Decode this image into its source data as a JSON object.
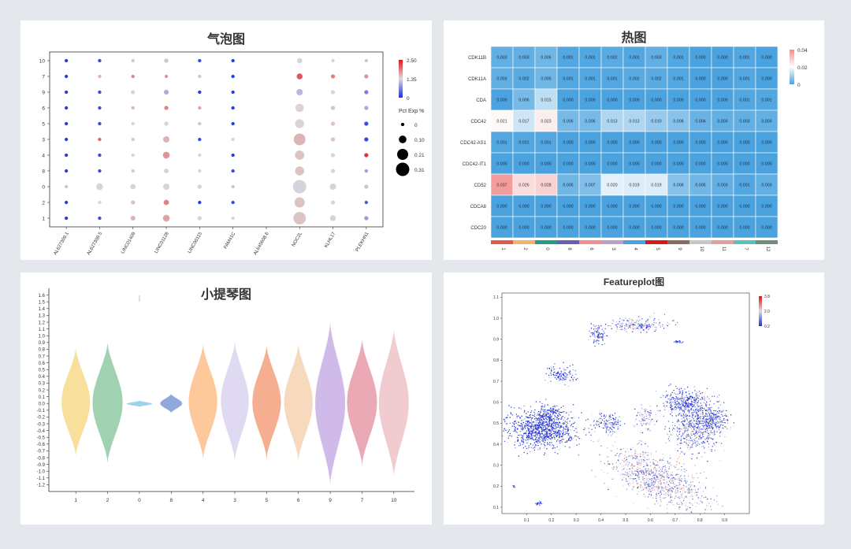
{
  "colors": {
    "low": "#1f2fd6",
    "mid": "#dcdcdc",
    "high": "#e0151b",
    "heat_low": "#4aa3df",
    "heat_high": "#f28c8c",
    "violin_gray": "#bdbdbd"
  },
  "chart_data": [
    {
      "type": "scatter",
      "subtype": "dotplot",
      "title": "气泡图",
      "xcategories": [
        "AL627309.1",
        "AL627309.5",
        "LINC01409",
        "LINC01128",
        "LINC00115",
        "FAM41C",
        "AL645608.6",
        "NOC2L",
        "KLHL17",
        "PLEKHN1"
      ],
      "ycategories": [
        "10",
        "7",
        "9",
        "6",
        "5",
        "3",
        "4",
        "8",
        "0",
        "2",
        "1"
      ],
      "color_legend": {
        "ticks": [
          "2.50",
          "1.35",
          "0"
        ],
        "range": [
          0,
          2.5
        ]
      },
      "size_legend": {
        "title": "Pct Exp %",
        "values": [
          "0",
          "0.10",
          "0.21",
          "0.31"
        ],
        "numeric": [
          0,
          0.1,
          0.21,
          0.31
        ]
      },
      "expression": [
        [
          0.1,
          0.2,
          1.4,
          1.1,
          0.2,
          0.1,
          null,
          1.2,
          1.3,
          1.1
        ],
        [
          0.1,
          1.5,
          1.8,
          1.7,
          1.4,
          0.1,
          null,
          2.1,
          1.8,
          1.7
        ],
        [
          0.1,
          0.2,
          1.3,
          0.9,
          0.1,
          0.1,
          null,
          1.0,
          1.3,
          0.6
        ],
        [
          0.1,
          0.2,
          1.5,
          1.8,
          1.6,
          0.1,
          null,
          1.3,
          1.1,
          0.9
        ],
        [
          0.1,
          0.2,
          1.2,
          1.3,
          1.1,
          0.1,
          null,
          1.3,
          1.4,
          0.2
        ],
        [
          0.1,
          2.0,
          1.4,
          1.5,
          0.2,
          1.3,
          null,
          1.5,
          1.4,
          0.2
        ],
        [
          0.1,
          0.2,
          1.3,
          1.7,
          1.2,
          0.1,
          null,
          1.4,
          1.3,
          2.3
        ],
        [
          0.1,
          0.2,
          1.4,
          1.2,
          1.2,
          0.2,
          null,
          1.4,
          1.3,
          0.8
        ],
        [
          1.1,
          1.2,
          1.3,
          1.2,
          1.2,
          1.1,
          null,
          1.2,
          1.2,
          1.1
        ],
        [
          0.1,
          1.3,
          1.4,
          1.8,
          0.1,
          0.2,
          null,
          1.4,
          1.3,
          0.3
        ],
        [
          0.1,
          0.2,
          1.5,
          1.6,
          1.2,
          1.2,
          null,
          1.4,
          1.2,
          0.8
        ]
      ],
      "pct": [
        [
          0.02,
          0.02,
          0.02,
          0.03,
          0.02,
          0.02,
          null,
          0.05,
          0.02,
          0.02
        ],
        [
          0.02,
          0.02,
          0.02,
          0.02,
          0.02,
          0.02,
          null,
          0.06,
          0.03,
          0.03
        ],
        [
          0.02,
          0.02,
          0.03,
          0.04,
          0.02,
          0.02,
          null,
          0.07,
          0.03,
          0.03
        ],
        [
          0.02,
          0.02,
          0.02,
          0.03,
          0.02,
          0.02,
          null,
          0.12,
          0.03,
          0.03
        ],
        [
          0.02,
          0.02,
          0.02,
          0.03,
          0.02,
          0.02,
          null,
          0.14,
          0.03,
          0.03
        ],
        [
          0.02,
          0.02,
          0.02,
          0.07,
          0.02,
          0.02,
          null,
          0.24,
          0.03,
          0.03
        ],
        [
          0.02,
          0.02,
          0.02,
          0.08,
          0.02,
          0.02,
          null,
          0.15,
          0.03,
          0.03
        ],
        [
          0.02,
          0.02,
          0.02,
          0.04,
          0.02,
          0.02,
          null,
          0.14,
          0.03,
          0.02
        ],
        [
          0.02,
          0.08,
          0.05,
          0.07,
          0.03,
          0.02,
          null,
          0.31,
          0.07,
          0.03
        ],
        [
          0.02,
          0.02,
          0.03,
          0.05,
          0.02,
          0.02,
          null,
          0.18,
          0.03,
          0.02
        ],
        [
          0.02,
          0.02,
          0.04,
          0.08,
          0.03,
          0.02,
          null,
          0.27,
          0.06,
          0.03
        ]
      ]
    },
    {
      "type": "heatmap",
      "title": "热图",
      "rows": [
        "CDK11B",
        "CDK11A",
        "CDA",
        "CDC42",
        "CDC42-AS1",
        "CDC42-IT1",
        "CD52",
        "CDCA8",
        "CDC20"
      ],
      "cols": [
        "1",
        "2",
        "0",
        "8",
        "6",
        "3",
        "4",
        "5",
        "9",
        "10",
        "11",
        "7",
        "12"
      ],
      "col_colors": [
        "#e05a4f",
        "#f3b16e",
        "#1f9e89",
        "#6b5fb5",
        "#f28e8e",
        "#b7a3c8",
        "#4aa3df",
        "#d7191c",
        "#8c6d5d",
        "#c7c7c7",
        "#e49e9e",
        "#5bc0c2",
        "#6d8f7a"
      ],
      "legend": {
        "ticks": [
          "0.04",
          "0.02",
          "0"
        ],
        "range": [
          0,
          0.04
        ]
      },
      "values": [
        [
          "0.003",
          "0.003",
          "0.005",
          "0.001",
          "0.001",
          "0.002",
          "0.001",
          "0.003",
          "0.001",
          "0.000",
          "0.000",
          "0.001",
          "0.000"
        ],
        [
          "0.003",
          "0.002",
          "0.005",
          "0.001",
          "0.001",
          "0.001",
          "0.002",
          "0.002",
          "0.001",
          "0.000",
          "0.000",
          "0.001",
          "0.000"
        ],
        [
          "0.000",
          "0.006",
          "0.015",
          "0.000",
          "0.000",
          "0.000",
          "0.000",
          "0.000",
          "0.000",
          "0.000",
          "0.000",
          "0.001",
          "0.001"
        ],
        [
          "0.021",
          "0.017",
          "0.023",
          "0.006",
          "0.006",
          "0.013",
          "0.013",
          "0.010",
          "0.008",
          "0.004",
          "0.003",
          "0.003",
          "0.003"
        ],
        [
          "0.001",
          "0.001",
          "0.001",
          "0.000",
          "0.000",
          "0.000",
          "0.000",
          "0.000",
          "0.000",
          "0.000",
          "0.000",
          "0.000",
          "0.000"
        ],
        [
          "0.000",
          "0.000",
          "0.000",
          "0.000",
          "0.000",
          "0.000",
          "0.000",
          "0.000",
          "0.000",
          "0.000",
          "0.000",
          "0.000",
          "0.000"
        ],
        [
          "0.037",
          "0.026",
          "0.028",
          "0.005",
          "0.007",
          "0.020",
          "0.019",
          "0.019",
          "0.008",
          "0.005",
          "0.003",
          "0.001",
          "0.003"
        ],
        [
          "0.000",
          "0.000",
          "0.000",
          "0.000",
          "0.000",
          "0.000",
          "0.000",
          "0.000",
          "0.000",
          "0.000",
          "0.000",
          "0.000",
          "0.000"
        ],
        [
          "0.000",
          "0.000",
          "0.000",
          "0.000",
          "0.000",
          "0.000",
          "0.000",
          "0.000",
          "0.000",
          "0.000",
          "0.000",
          "0.000",
          "0.000"
        ]
      ]
    },
    {
      "type": "violin",
      "title": "小提琴图",
      "categories": [
        "1",
        "2",
        "0",
        "8",
        "4",
        "3",
        "5",
        "6",
        "9",
        "7",
        "10"
      ],
      "colors": [
        "#f7d98b",
        "#8fc9a3",
        "#8ec9e8",
        "#7b9ad6",
        "#fdbf8a",
        "#d9d4ee",
        "#f4a07c",
        "#f6d2b2",
        "#c7aee6",
        "#e79aa8",
        "#edc2c8"
      ],
      "ylim": [
        -1.3,
        1.7
      ],
      "yticks": [
        "-1.2",
        "-1.1",
        "-1.0",
        "-0.9",
        "-0.8",
        "-0.7",
        "-0.6",
        "-0.5",
        "-0.4",
        "-0.3",
        "-0.2",
        "-0.1",
        "0.0",
        "0.1",
        "0.2",
        "0.3",
        "0.4",
        "0.5",
        "0.6",
        "0.7",
        "0.8",
        "0.9",
        "1.0",
        "1.1",
        "1.2",
        "1.3",
        "1.4",
        "1.5",
        "1.6"
      ],
      "shapes": [
        {
          "min": -0.78,
          "max": 0.82,
          "width": 0.78
        },
        {
          "min": -0.88,
          "max": 0.9,
          "width": 0.82
        },
        {
          "min": -0.05,
          "max": 0.04,
          "width": 0.7
        },
        {
          "min": -0.14,
          "max": 0.14,
          "width": 0.6
        },
        {
          "min": -0.82,
          "max": 0.88,
          "width": 0.78
        },
        {
          "min": -0.85,
          "max": 0.92,
          "width": 0.76
        },
        {
          "min": -0.82,
          "max": 0.86,
          "width": 0.78
        },
        {
          "min": -0.85,
          "max": 0.88,
          "width": 0.78
        },
        {
          "min": -1.2,
          "max": 1.2,
          "width": 0.82
        },
        {
          "min": -0.92,
          "max": 0.95,
          "width": 0.82
        },
        {
          "min": -1.08,
          "max": 1.1,
          "width": 0.82
        }
      ],
      "outlier": {
        "category": "0",
        "value": 1.55
      }
    },
    {
      "type": "scatter",
      "subtype": "featureplot",
      "title": "Featureplot图",
      "xlim": [
        0.0,
        1.0
      ],
      "ylim": [
        0.07,
        1.12
      ],
      "xticks": [
        "0.1",
        "0.2",
        "0.3",
        "0.4",
        "0.5",
        "0.6",
        "0.7",
        "0.8",
        "0.9"
      ],
      "yticks": [
        "0.1",
        "0.2",
        "0.3",
        "0.4",
        "0.5",
        "0.6",
        "0.7",
        "0.8",
        "0.9",
        "1.0",
        "1.1"
      ],
      "legend": {
        "ticks": [
          "3.8",
          "2.0",
          "0.2"
        ],
        "range": [
          0.2,
          3.8
        ]
      },
      "clusters": [
        {
          "cx": 0.16,
          "cy": 0.47,
          "rx": 0.12,
          "ry": 0.085,
          "n": 900,
          "expr": 0.3
        },
        {
          "cx": 0.19,
          "cy": 0.54,
          "rx": 0.05,
          "ry": 0.04,
          "n": 150,
          "expr": 0.3
        },
        {
          "cx": 0.62,
          "cy": 0.24,
          "rx": 0.2,
          "ry": 0.09,
          "n": 900,
          "expr": 1.6,
          "tilt": -0.55
        },
        {
          "cx": 0.78,
          "cy": 0.48,
          "rx": 0.09,
          "ry": 0.12,
          "n": 500,
          "expr": 1.0
        },
        {
          "cx": 0.74,
          "cy": 0.6,
          "rx": 0.08,
          "ry": 0.05,
          "n": 300,
          "expr": 0.5
        },
        {
          "cx": 0.85,
          "cy": 0.52,
          "rx": 0.06,
          "ry": 0.06,
          "n": 250,
          "expr": 0.5
        },
        {
          "cx": 0.55,
          "cy": 0.97,
          "rx": 0.1,
          "ry": 0.03,
          "n": 200,
          "expr": 1.2
        },
        {
          "cx": 0.39,
          "cy": 0.92,
          "rx": 0.03,
          "ry": 0.04,
          "n": 100,
          "expr": 0.6
        },
        {
          "cx": 0.24,
          "cy": 0.73,
          "rx": 0.05,
          "ry": 0.035,
          "n": 120,
          "expr": 0.6
        },
        {
          "cx": 0.43,
          "cy": 0.5,
          "rx": 0.05,
          "ry": 0.04,
          "n": 120,
          "expr": 0.7
        },
        {
          "cx": 0.58,
          "cy": 0.52,
          "rx": 0.04,
          "ry": 0.05,
          "n": 80,
          "expr": 1.3
        },
        {
          "cx": 0.71,
          "cy": 0.89,
          "rx": 0.015,
          "ry": 0.01,
          "n": 25,
          "expr": 1.0
        },
        {
          "cx": 0.15,
          "cy": 0.12,
          "rx": 0.015,
          "ry": 0.01,
          "n": 20,
          "expr": 0.4
        },
        {
          "cx": 0.05,
          "cy": 0.2,
          "rx": 0.008,
          "ry": 0.008,
          "n": 5,
          "expr": 0.4
        }
      ]
    }
  ]
}
